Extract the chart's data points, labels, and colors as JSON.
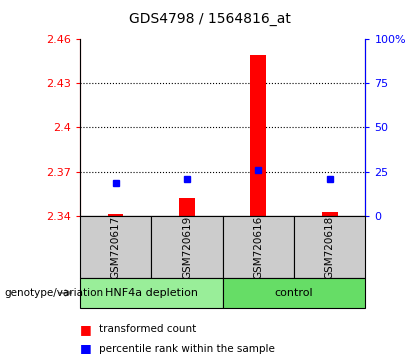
{
  "title": "GDS4798 / 1564816_at",
  "samples": [
    "GSM720617",
    "GSM720619",
    "GSM720616",
    "GSM720618"
  ],
  "red_values": [
    2.341,
    2.352,
    2.449,
    2.343
  ],
  "blue_values": [
    2.362,
    2.365,
    2.371,
    2.365
  ],
  "red_base": 2.34,
  "ylim_left": [
    2.34,
    2.46
  ],
  "ylim_right": [
    0,
    100
  ],
  "left_ticks": [
    2.34,
    2.37,
    2.4,
    2.43,
    2.46
  ],
  "right_ticks": [
    0,
    25,
    50,
    75,
    100
  ],
  "right_tick_labels": [
    "0",
    "25",
    "50",
    "75",
    "100%"
  ],
  "group_spans": [
    {
      "label": "HNF4a depletion",
      "start": 0,
      "end": 1,
      "color": "#99ee99"
    },
    {
      "label": "control",
      "start": 2,
      "end": 3,
      "color": "#66dd66"
    }
  ],
  "legend_items": [
    "transformed count",
    "percentile rank within the sample"
  ],
  "legend_colors": [
    "red",
    "blue"
  ],
  "sample_bg": "#cccccc",
  "bar_color": "red",
  "marker_color": "blue"
}
